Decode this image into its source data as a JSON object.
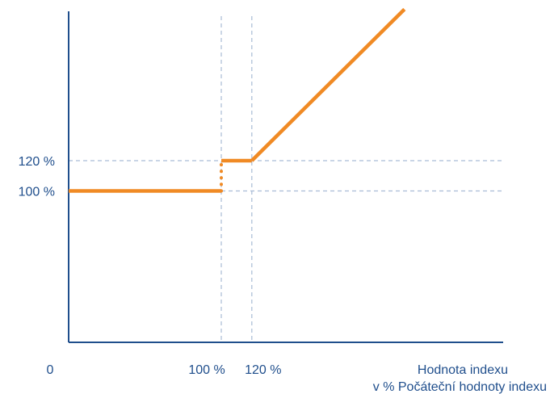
{
  "chart_data": {
    "type": "line",
    "origin_label": "0",
    "x_ticks": [
      {
        "value": 100,
        "label": "100 %"
      },
      {
        "value": 120,
        "label": "120 %"
      }
    ],
    "y_ticks": [
      {
        "value": 100,
        "label": "100 %"
      },
      {
        "value": 120,
        "label": "120 %"
      }
    ],
    "xlabel": [
      "Hodnota indexu",
      "v % Počáteční hodnoty indexu"
    ],
    "ylabel": "",
    "xlim": [
      0,
      200
    ],
    "ylim": [
      0,
      220
    ],
    "grid": "dashed reference lines at tick values",
    "segments": [
      {
        "style": "solid",
        "x": [
          0,
          100
        ],
        "y": [
          100,
          100
        ]
      },
      {
        "style": "dotted",
        "x": [
          100,
          100
        ],
        "y": [
          100,
          120
        ]
      },
      {
        "style": "solid",
        "x": [
          100,
          120
        ],
        "y": [
          120,
          120
        ]
      },
      {
        "style": "solid",
        "x": [
          120,
          220
        ],
        "y": [
          120,
          220
        ]
      }
    ],
    "colors": {
      "line": "#f08a24",
      "axis": "#1f4e8c",
      "grid": "#a9bcd6",
      "text": "#1f4e8c"
    }
  }
}
